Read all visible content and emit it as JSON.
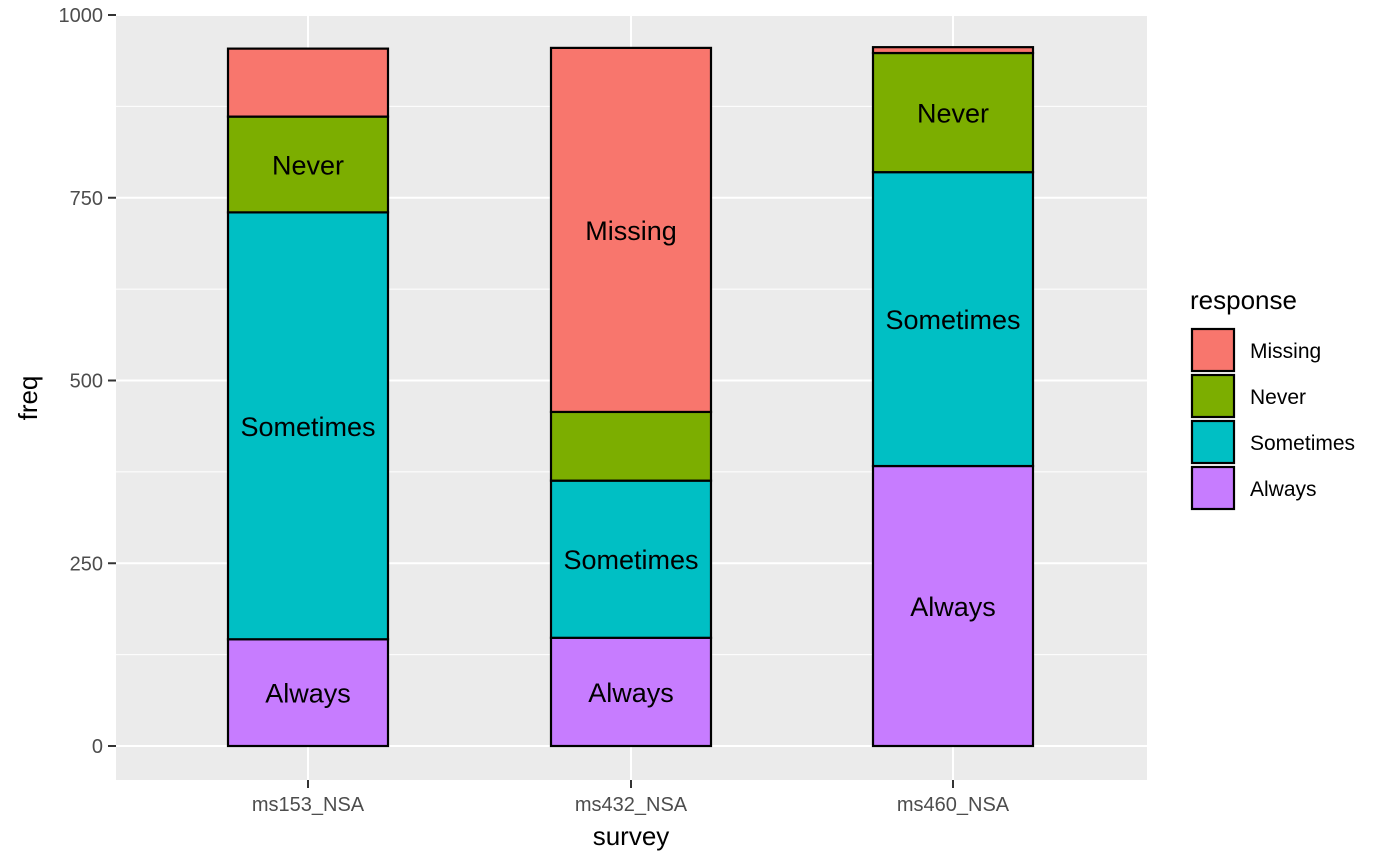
{
  "chart_data": {
    "type": "bar",
    "stacked": true,
    "categories": [
      "ms153_NSA",
      "ms432_NSA",
      "ms460_NSA"
    ],
    "series": [
      {
        "name": "Always",
        "color": "#C77CFF",
        "values": [
          146,
          148,
          383
        ]
      },
      {
        "name": "Sometimes",
        "color": "#00BFC4",
        "values": [
          584,
          215,
          402
        ]
      },
      {
        "name": "Never",
        "color": "#7CAE00",
        "values": [
          131,
          94,
          163
        ]
      },
      {
        "name": "Missing",
        "color": "#F8766D",
        "values": [
          93,
          498,
          8
        ]
      }
    ],
    "segment_labels": [
      [
        "Always",
        "Sometimes",
        "Never",
        ""
      ],
      [
        "Always",
        "Sometimes",
        "",
        "Missing"
      ],
      [
        "Always",
        "Sometimes",
        "Never",
        ""
      ]
    ],
    "xlabel": "survey",
    "ylabel": "freq",
    "ylim": [
      0,
      1000
    ],
    "yticks": [
      0,
      250,
      500,
      750,
      1000
    ],
    "grid": true,
    "legend": {
      "title": "response",
      "position": "right",
      "order": [
        "Missing",
        "Never",
        "Sometimes",
        "Always"
      ]
    },
    "panel_background": "#EBEBEB"
  }
}
